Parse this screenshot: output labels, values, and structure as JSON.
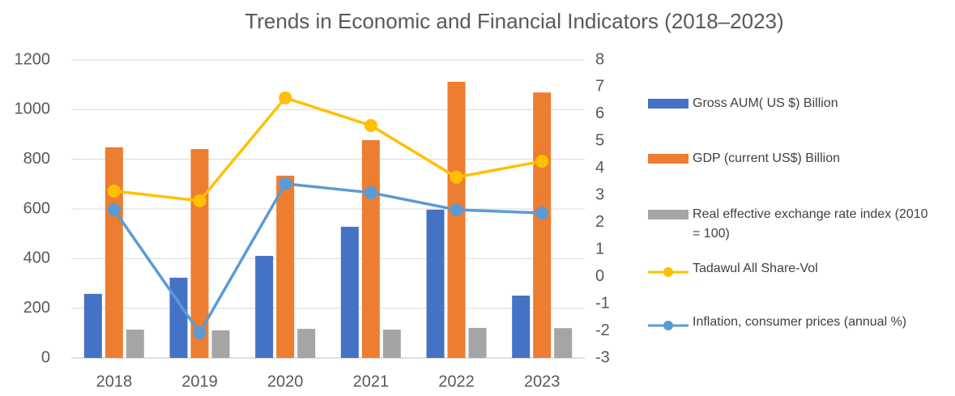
{
  "chart_data": {
    "type": "bar-line",
    "title": "Trends in Economic and Financial Indicators (2018–2023)",
    "categories": [
      "2018",
      "2019",
      "2020",
      "2021",
      "2022",
      "2023"
    ],
    "ylim": [
      0,
      1200
    ],
    "yticks": [
      0,
      200,
      400,
      600,
      800,
      1000,
      1200
    ],
    "y2lim": [
      -3,
      8
    ],
    "y2ticks": [
      -3,
      -2,
      -1,
      0,
      1,
      2,
      3,
      4,
      5,
      6,
      7,
      8
    ],
    "grid": true,
    "legend": "right",
    "series": [
      {
        "name": "Gross AUM( US $) Billion",
        "type": "bar",
        "color": "#4472c4",
        "values": [
          258,
          323,
          411,
          528,
          597,
          251
        ]
      },
      {
        "name": "GDP (current US$) Billion",
        "type": "bar",
        "color": "#ed7d31",
        "values": [
          848,
          841,
          734,
          877,
          1112,
          1069
        ]
      },
      {
        "name": "Real effective exchange rate index (2010 = 100)",
        "type": "bar",
        "color": "#a5a5a5",
        "values": [
          114,
          111,
          117,
          114,
          121,
          120
        ]
      },
      {
        "name": "Tadawul All Share-Vol",
        "type": "line",
        "axis": "y2",
        "color": "#ffc000",
        "values": [
          3.16,
          2.8,
          6.6,
          5.58,
          3.67,
          4.26
        ]
      },
      {
        "name": "Inflation, consumer prices (annual %)",
        "type": "line",
        "axis": "y2",
        "color": "#5b9bd5",
        "values": [
          2.47,
          -2.07,
          3.43,
          3.1,
          2.47,
          2.35
        ]
      }
    ]
  }
}
